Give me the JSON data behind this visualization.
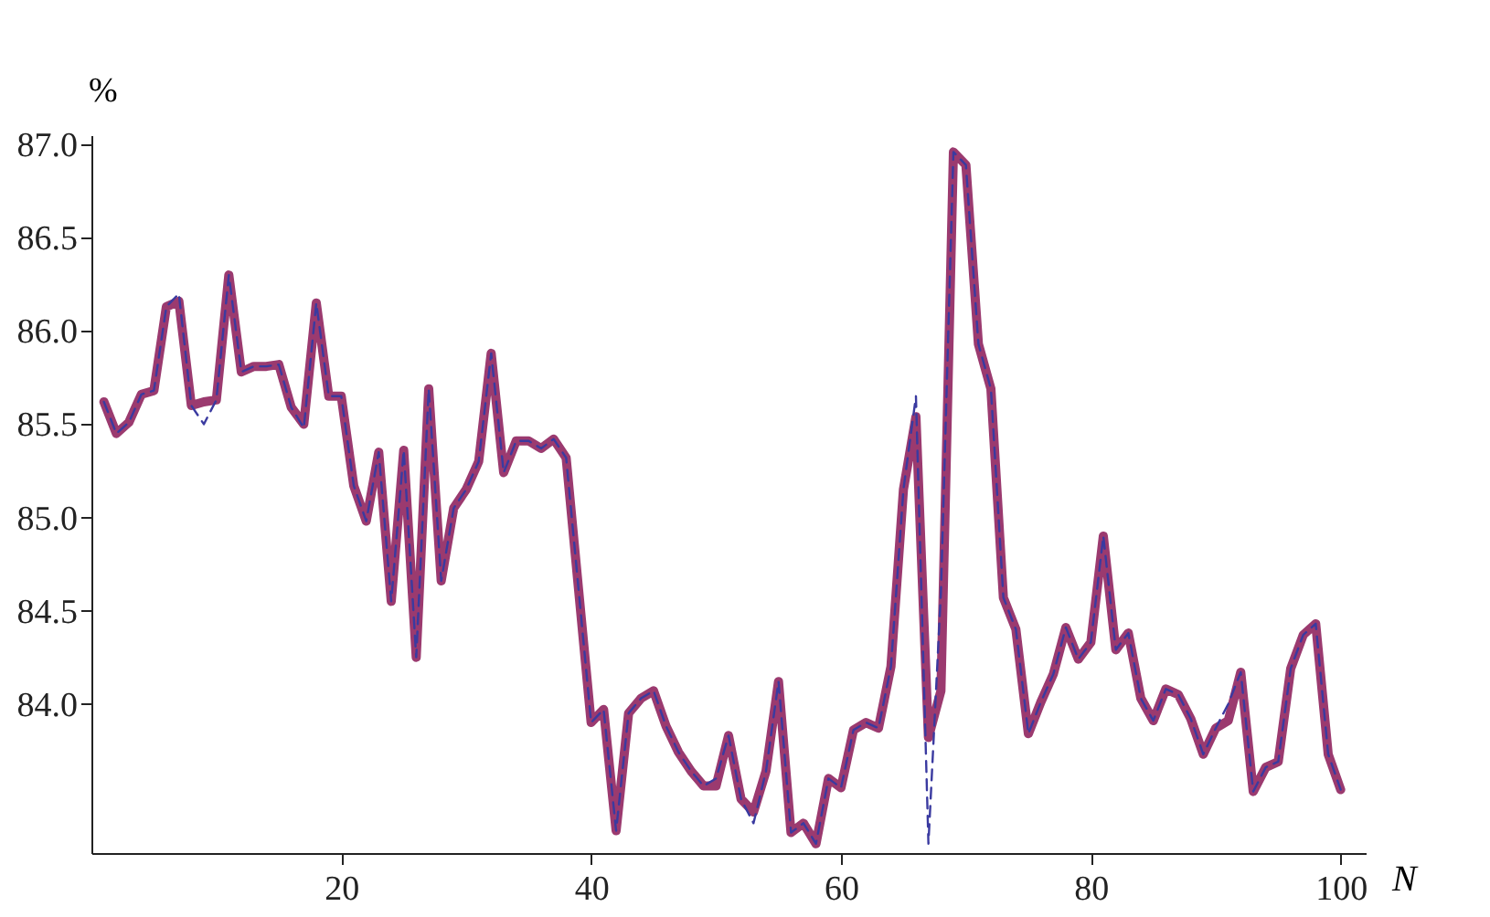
{
  "chart_data": {
    "type": "line",
    "xlabel": "N",
    "ylabel": "%",
    "xlim": [
      0,
      102
    ],
    "xticks": [
      20,
      40,
      60,
      80,
      100
    ],
    "ylim": [
      83.2,
      87.05
    ],
    "yticks": [
      {
        "value": 84,
        "label": "84.0"
      },
      {
        "value": 84.5,
        "label": "84.5"
      },
      {
        "value": 85,
        "label": "85.0"
      },
      {
        "value": 85.5,
        "label": "85.5"
      },
      {
        "value": 86,
        "label": "86.0"
      },
      {
        "value": 86.5,
        "label": "86.5"
      },
      {
        "value": 87,
        "label": "87.0"
      }
    ],
    "grid": false,
    "marker": "none",
    "x": [
      1,
      2,
      3,
      4,
      5,
      6,
      7,
      8,
      9,
      10,
      11,
      12,
      13,
      14,
      15,
      16,
      17,
      18,
      19,
      20,
      21,
      22,
      23,
      24,
      25,
      26,
      27,
      28,
      29,
      30,
      31,
      32,
      33,
      34,
      35,
      36,
      37,
      38,
      39,
      40,
      41,
      42,
      43,
      44,
      45,
      46,
      47,
      48,
      49,
      50,
      51,
      52,
      53,
      54,
      55,
      56,
      57,
      58,
      59,
      60,
      61,
      62,
      63,
      64,
      65,
      66,
      67,
      68,
      69,
      70,
      71,
      72,
      73,
      74,
      75,
      76,
      77,
      78,
      79,
      80,
      81,
      82,
      83,
      84,
      85,
      86,
      87,
      88,
      89,
      90,
      91,
      92,
      93,
      94,
      95,
      96,
      97,
      98,
      99,
      100
    ],
    "series": [
      {
        "color": "#9b3a6f",
        "line_style": "solid",
        "values": [
          85.62,
          85.45,
          85.51,
          85.66,
          85.68,
          86.13,
          86.16,
          85.6,
          85.62,
          85.63,
          86.3,
          85.78,
          85.81,
          85.81,
          85.82,
          85.59,
          85.5,
          86.15,
          85.65,
          85.65,
          85.17,
          84.98,
          85.35,
          84.55,
          85.36,
          84.25,
          85.69,
          84.66,
          85.05,
          85.15,
          85.3,
          85.88,
          85.24,
          85.41,
          85.41,
          85.37,
          85.42,
          85.32,
          84.61,
          83.9,
          83.97,
          83.32,
          83.95,
          84.03,
          84.07,
          83.88,
          83.74,
          83.64,
          83.56,
          83.56,
          83.83,
          83.49,
          83.42,
          83.64,
          84.12,
          83.31,
          83.36,
          83.25,
          83.6,
          83.55,
          83.86,
          83.9,
          83.87,
          84.2,
          85.15,
          85.54,
          83.82,
          84.07,
          86.96,
          86.89,
          85.93,
          85.69,
          84.57,
          84.4,
          83.84,
          84.01,
          84.16,
          84.41,
          84.24,
          84.33,
          84.9,
          84.29,
          84.38,
          84.03,
          83.91,
          84.08,
          84.05,
          83.92,
          83.73,
          83.87,
          83.91,
          84.17,
          83.53,
          83.66,
          83.69,
          84.19,
          84.37,
          84.43,
          83.73,
          83.54
        ]
      },
      {
        "color": "#3a3aa0",
        "line_style": "dashed",
        "values": [
          85.62,
          85.45,
          85.51,
          85.66,
          85.68,
          86.13,
          86.2,
          85.6,
          85.5,
          85.63,
          86.3,
          85.78,
          85.81,
          85.81,
          85.82,
          85.59,
          85.48,
          86.15,
          85.65,
          85.65,
          85.17,
          84.98,
          85.35,
          84.55,
          85.36,
          84.25,
          85.69,
          84.66,
          85.05,
          85.15,
          85.3,
          85.88,
          85.24,
          85.41,
          85.41,
          85.37,
          85.42,
          85.32,
          84.61,
          83.9,
          83.97,
          83.32,
          83.95,
          84.03,
          84.07,
          83.88,
          83.74,
          83.64,
          83.56,
          83.6,
          83.83,
          83.49,
          83.36,
          83.64,
          84.12,
          83.31,
          83.36,
          83.25,
          83.6,
          83.55,
          83.86,
          83.9,
          83.87,
          84.2,
          85.15,
          85.65,
          83.25,
          84.6,
          86.96,
          86.89,
          85.93,
          85.69,
          84.57,
          84.4,
          83.84,
          84.01,
          84.16,
          84.41,
          84.24,
          84.33,
          84.9,
          84.29,
          84.38,
          84.03,
          83.91,
          84.08,
          84.05,
          83.92,
          83.73,
          83.87,
          84.0,
          84.17,
          83.53,
          83.66,
          83.69,
          84.19,
          84.37,
          84.43,
          83.73,
          83.54
        ]
      }
    ]
  }
}
